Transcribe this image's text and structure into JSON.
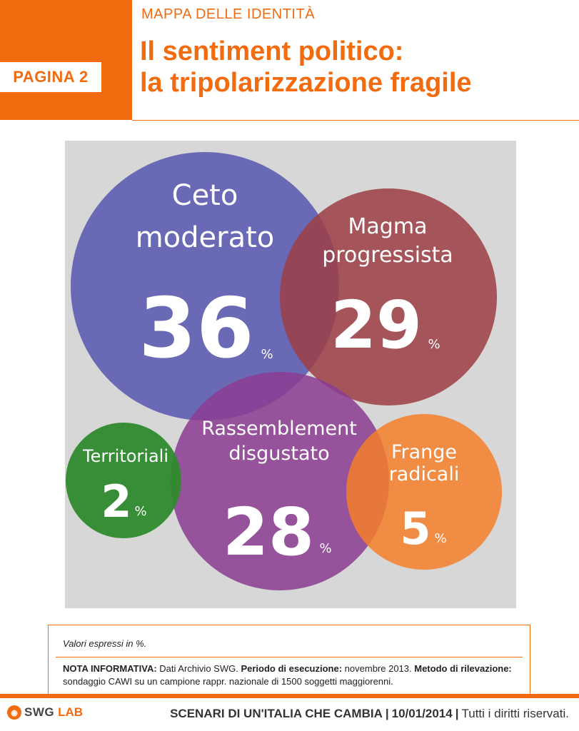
{
  "header": {
    "page_badge": "PAGINA 2",
    "kicker": "MAPPA DELLE IDENTITÀ",
    "title_line1": "Il sentiment politico:",
    "title_line2": "la tripolarizzazione fragile"
  },
  "colors": {
    "accent": "#f26b0f",
    "ceto_moderato": "#5b5ab0",
    "magma_progressista": "#9c3f45",
    "rassemblement_disgustato": "#8a3d92",
    "territoriali": "#2f8a2e",
    "frange_radicali": "#f47f2b",
    "panel_background": "#d7d7d7"
  },
  "chart_data": {
    "type": "bubble",
    "unit": "%",
    "series": [
      {
        "name": "Ceto moderato",
        "label_lines": [
          "Ceto",
          "moderato"
        ],
        "value": 36
      },
      {
        "name": "Magma progressista",
        "label_lines": [
          "Magma",
          "progressista"
        ],
        "value": 29
      },
      {
        "name": "Rassemblement disgustato",
        "label_lines": [
          "Rassemblement",
          "disgustato"
        ],
        "value": 28
      },
      {
        "name": "Territoriali",
        "label_lines": [
          "Territoriali"
        ],
        "value": 2
      },
      {
        "name": "Frange radicali",
        "label_lines": [
          "Frange",
          "radicali"
        ],
        "value": 5
      }
    ]
  },
  "notes": {
    "values_note": "Valori espressi in %.",
    "info_label": "NOTA INFORMATIVA:",
    "info_source": "Dati Archivio SWG.",
    "period_label": "Periodo di esecuzione:",
    "period_value": "novembre 2013.",
    "method_label": "Metodo di rilevazione:",
    "method_value": "sondaggio CAWI su un campione rappr. nazionale di 1500 soggetti maggiorenni."
  },
  "footer": {
    "logo_swg": "SWG",
    "logo_lab": "LAB",
    "series_title": "SCENARI DI UN'ITALIA CHE CAMBIA",
    "date": "10/01/2014",
    "rights": "Tutti i diritti riservati."
  }
}
